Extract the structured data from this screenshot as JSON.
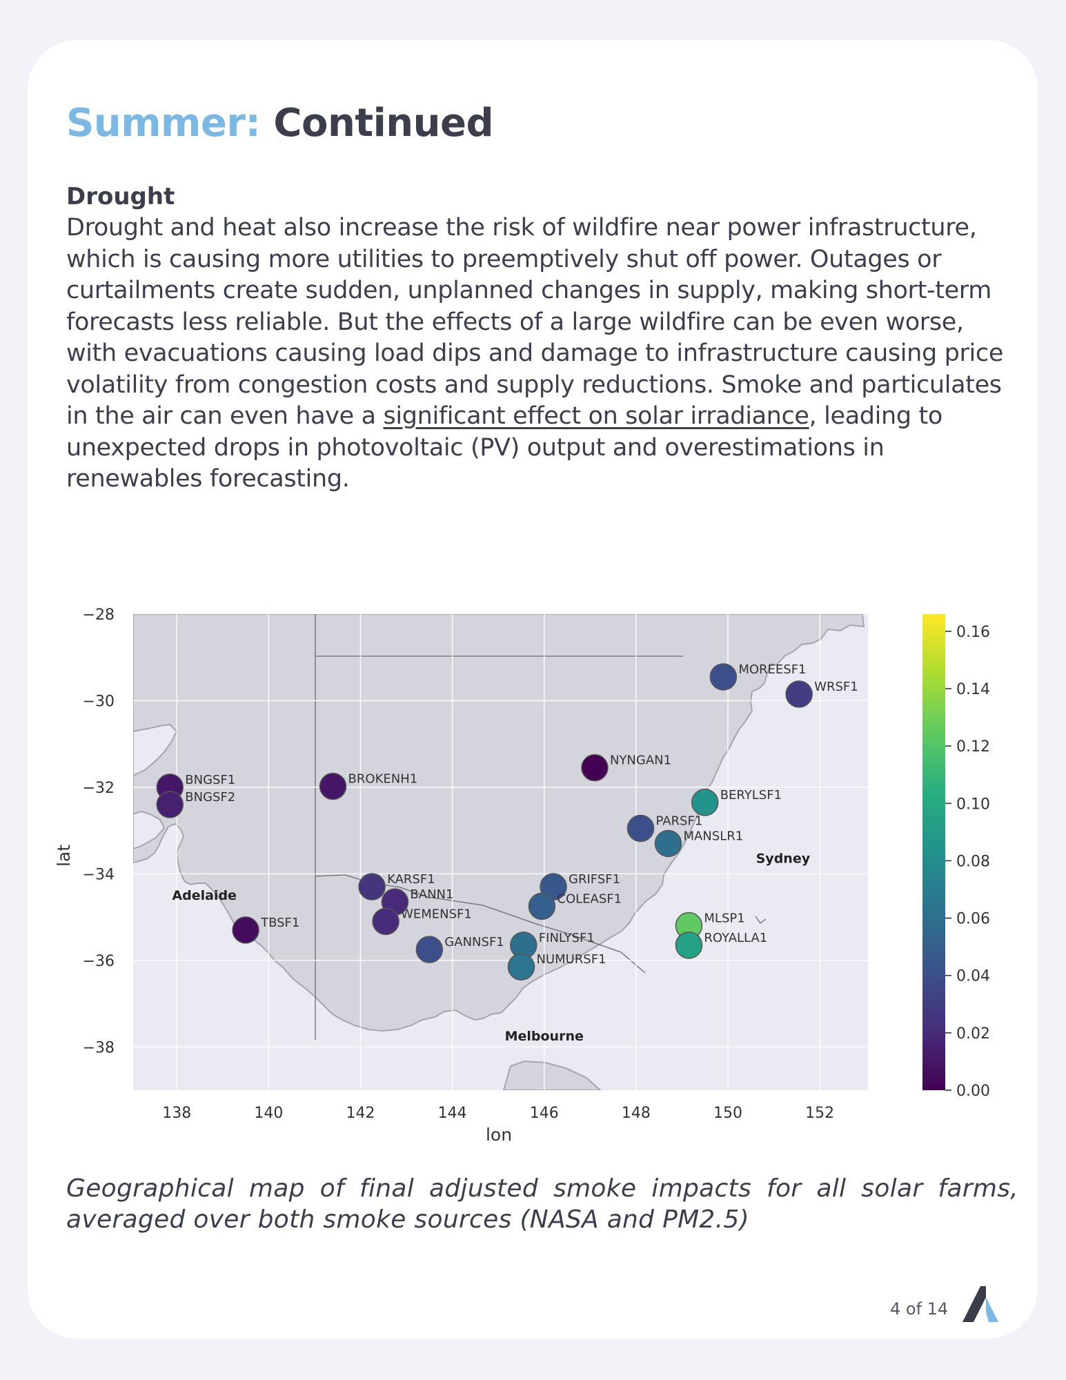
{
  "header": {
    "title_accent": "Summer:",
    "title_main": "Continued"
  },
  "section": {
    "heading": "Drought",
    "para_before_link": "Drought and heat also increase the risk of wildfire near power infrastructure, which is causing more utilities to preemptively shut off power. Outages or curtailments create sudden, unplanned changes in supply, making short-term forecasts less reliable. But the effects of a large wildfire can be even worse, with evacuations causing load dips and damage to infrastructure causing price volatility from congestion costs and supply reductions. Smoke and particulates in the air can even have a ",
    "link_text": "significant effect on solar irradiance",
    "para_after_link": ", leading to unexpected drops in photovoltaic (PV) output and overestimations in renewables forecasting."
  },
  "chart_data": {
    "type": "scatter",
    "title": "",
    "xlabel": "lon",
    "ylabel": "lat",
    "xlim": [
      137.05,
      153.05
    ],
    "ylim": [
      -39.0,
      -28.0
    ],
    "xticks": [
      "138",
      "140",
      "142",
      "144",
      "146",
      "148",
      "150",
      "152"
    ],
    "yticks": [
      "−28",
      "−30",
      "−32",
      "−34",
      "−36",
      "−38"
    ],
    "grid": true,
    "colormap": "viridis",
    "colorbar": {
      "range": [
        0.0,
        0.166
      ],
      "ticks": [
        "0.00",
        "0.02",
        "0.04",
        "0.06",
        "0.08",
        "0.10",
        "0.12",
        "0.14",
        "0.16"
      ]
    },
    "cities": [
      {
        "name": "Adelaide",
        "lon": 138.6,
        "lat": -34.6
      },
      {
        "name": "Sydney",
        "lon": 151.2,
        "lat": -33.75
      },
      {
        "name": "Melbourne",
        "lon": 146.0,
        "lat": -37.85
      }
    ],
    "points": [
      {
        "name": "MOREESF1",
        "lon": 149.9,
        "lat": -29.45,
        "value": 0.04
      },
      {
        "name": "WRSF1",
        "lon": 151.55,
        "lat": -29.85,
        "value": 0.03
      },
      {
        "name": "NYNGAN1",
        "lon": 147.1,
        "lat": -31.55,
        "value": 0.0
      },
      {
        "name": "BNGSF1",
        "lon": 137.85,
        "lat": -32.0,
        "value": 0.01
      },
      {
        "name": "BNGSF2",
        "lon": 137.85,
        "lat": -32.4,
        "value": 0.015
      },
      {
        "name": "BROKENH1",
        "lon": 141.4,
        "lat": -31.98,
        "value": 0.01
      },
      {
        "name": "BERYLSF1",
        "lon": 149.5,
        "lat": -32.35,
        "value": 0.085
      },
      {
        "name": "PARSF1",
        "lon": 148.1,
        "lat": -32.95,
        "value": 0.04
      },
      {
        "name": "MANSLR1",
        "lon": 148.7,
        "lat": -33.3,
        "value": 0.06
      },
      {
        "name": "KARSF1",
        "lon": 142.25,
        "lat": -34.3,
        "value": 0.025
      },
      {
        "name": "BANN1",
        "lon": 142.75,
        "lat": -34.65,
        "value": 0.02
      },
      {
        "name": "WEMENSF1",
        "lon": 142.55,
        "lat": -35.1,
        "value": 0.02
      },
      {
        "name": "TBSF1",
        "lon": 139.5,
        "lat": -35.3,
        "value": 0.005
      },
      {
        "name": "GANNSF1",
        "lon": 143.5,
        "lat": -35.75,
        "value": 0.04
      },
      {
        "name": "GRIFSF1",
        "lon": 146.2,
        "lat": -34.3,
        "value": 0.045
      },
      {
        "name": "COLEASF1",
        "lon": 145.95,
        "lat": -34.75,
        "value": 0.05
      },
      {
        "name": "FINLYSF1",
        "lon": 145.55,
        "lat": -35.65,
        "value": 0.06
      },
      {
        "name": "NUMURSF1",
        "lon": 145.5,
        "lat": -36.15,
        "value": 0.065
      },
      {
        "name": "MLSP1",
        "lon": 149.15,
        "lat": -35.2,
        "value": 0.125
      },
      {
        "name": "ROYALLA1",
        "lon": 149.15,
        "lat": -35.65,
        "value": 0.095
      }
    ]
  },
  "caption": "Geographical map of final adjusted smoke impacts for all solar farms, averaged over both smoke sources (NASA and PM2.5)",
  "footer": {
    "page_label": "4 of 14"
  }
}
